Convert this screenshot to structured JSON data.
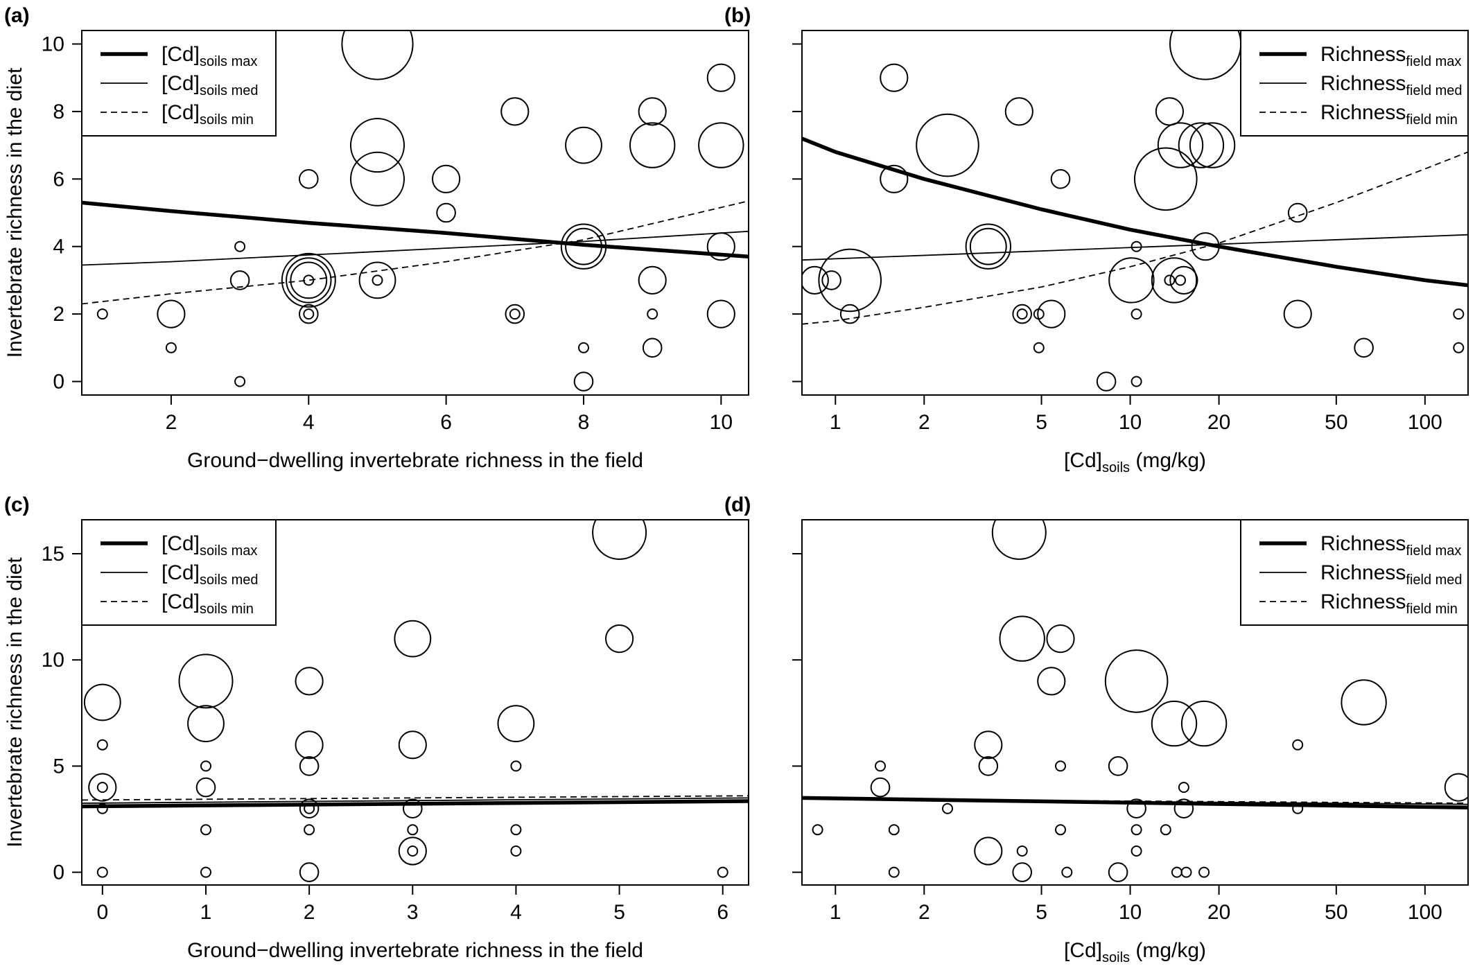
{
  "chart_data": [
    {
      "panel": "a",
      "type": "scatter",
      "panel_label": "(a)",
      "xlabel": "Ground−dwelling invertebrate richness in the field",
      "ylabel": "Invertebrate richness in the diet",
      "xscale": "linear",
      "xlim": [
        0.7,
        10.4
      ],
      "ylim": [
        -0.4,
        10.4
      ],
      "xticks": [
        2,
        4,
        6,
        8,
        10
      ],
      "yticks": [
        0,
        2,
        4,
        6,
        8,
        10
      ],
      "legend_position": "top-left",
      "legend": [
        {
          "base": "[Cd]",
          "sub": "soils max",
          "style": "thick"
        },
        {
          "base": "[Cd]",
          "sub": "soils med",
          "style": "thin"
        },
        {
          "base": "[Cd]",
          "sub": "soils min",
          "style": "dashed"
        }
      ],
      "points": [
        {
          "x": 1,
          "y": 2,
          "size": 1
        },
        {
          "x": 2,
          "y": 1,
          "size": 1
        },
        {
          "x": 2,
          "y": 2,
          "size": 3
        },
        {
          "x": 3,
          "y": 4,
          "size": 1
        },
        {
          "x": 3,
          "y": 3,
          "size": 2
        },
        {
          "x": 3,
          "y": 0,
          "size": 1
        },
        {
          "x": 4,
          "y": 6,
          "size": 2
        },
        {
          "x": 4,
          "y": 3,
          "size": 1
        },
        {
          "x": 4,
          "y": 3,
          "size": 4
        },
        {
          "x": 4,
          "y": 3,
          "size": 5
        },
        {
          "x": 4,
          "y": 3,
          "size": 6
        },
        {
          "x": 4,
          "y": 2,
          "size": 1
        },
        {
          "x": 4,
          "y": 2,
          "size": 2
        },
        {
          "x": 5,
          "y": 10,
          "size": 8
        },
        {
          "x": 5,
          "y": 7,
          "size": 6
        },
        {
          "x": 5,
          "y": 6,
          "size": 6
        },
        {
          "x": 5,
          "y": 3,
          "size": 1
        },
        {
          "x": 5,
          "y": 3,
          "size": 4
        },
        {
          "x": 6,
          "y": 6,
          "size": 3
        },
        {
          "x": 6,
          "y": 5,
          "size": 2
        },
        {
          "x": 7,
          "y": 8,
          "size": 3
        },
        {
          "x": 7,
          "y": 2,
          "size": 1
        },
        {
          "x": 7,
          "y": 2,
          "size": 2
        },
        {
          "x": 8,
          "y": 7,
          "size": 4
        },
        {
          "x": 8,
          "y": 4,
          "size": 4
        },
        {
          "x": 8,
          "y": 4,
          "size": 5
        },
        {
          "x": 8,
          "y": 1,
          "size": 1
        },
        {
          "x": 8,
          "y": 0,
          "size": 2
        },
        {
          "x": 9,
          "y": 8,
          "size": 3
        },
        {
          "x": 9,
          "y": 7,
          "size": 5
        },
        {
          "x": 9,
          "y": 3,
          "size": 3
        },
        {
          "x": 9,
          "y": 2,
          "size": 1
        },
        {
          "x": 9,
          "y": 1,
          "size": 2
        },
        {
          "x": 10,
          "y": 9,
          "size": 3
        },
        {
          "x": 10,
          "y": 7,
          "size": 5
        },
        {
          "x": 10,
          "y": 4,
          "size": 3
        },
        {
          "x": 10,
          "y": 2,
          "size": 3
        }
      ],
      "curves": [
        {
          "legend_index": 0,
          "style": "thick",
          "x": [
            0.7,
            2,
            4,
            6,
            8,
            10.4
          ],
          "y": [
            5.3,
            5.05,
            4.7,
            4.4,
            4.05,
            3.7
          ]
        },
        {
          "legend_index": 1,
          "style": "thin",
          "x": [
            0.7,
            2,
            4,
            6,
            8,
            10.4
          ],
          "y": [
            3.45,
            3.55,
            3.75,
            3.95,
            4.15,
            4.45
          ]
        },
        {
          "legend_index": 2,
          "style": "dashed",
          "x": [
            0.7,
            2,
            4,
            6,
            8,
            10.4
          ],
          "y": [
            2.3,
            2.6,
            3.0,
            3.55,
            4.2,
            5.35
          ]
        }
      ]
    },
    {
      "panel": "b",
      "type": "scatter",
      "panel_label": "(b)",
      "xlabel_base": "[Cd]",
      "xlabel_sub": "soils",
      "xlabel_unit": " (mg/kg)",
      "ylabel": "",
      "xscale": "log",
      "xlim": [
        0.77,
        140
      ],
      "ylim": [
        -0.4,
        10.4
      ],
      "xticks": [
        1,
        2,
        5,
        10,
        20,
        50,
        100
      ],
      "yticks": [
        0,
        2,
        4,
        6,
        8,
        10
      ],
      "legend_position": "top-right",
      "legend": [
        {
          "base": "Richness",
          "sub": "field max",
          "style": "thick"
        },
        {
          "base": "Richness",
          "sub": "field med",
          "style": "thin"
        },
        {
          "base": "Richness",
          "sub": "field min",
          "style": "dashed"
        }
      ],
      "points": [
        {
          "x": 0.85,
          "y": 3,
          "size": 3
        },
        {
          "x": 0.97,
          "y": 3,
          "size": 2
        },
        {
          "x": 1.12,
          "y": 3,
          "size": 7
        },
        {
          "x": 1.12,
          "y": 2,
          "size": 2
        },
        {
          "x": 1.58,
          "y": 9,
          "size": 3
        },
        {
          "x": 1.58,
          "y": 6,
          "size": 3
        },
        {
          "x": 2.4,
          "y": 7,
          "size": 7
        },
        {
          "x": 3.3,
          "y": 4,
          "size": 4
        },
        {
          "x": 3.3,
          "y": 4,
          "size": 5
        },
        {
          "x": 4.2,
          "y": 8,
          "size": 3
        },
        {
          "x": 4.3,
          "y": 2,
          "size": 1
        },
        {
          "x": 4.3,
          "y": 2,
          "size": 2
        },
        {
          "x": 4.9,
          "y": 2,
          "size": 1
        },
        {
          "x": 4.9,
          "y": 1,
          "size": 1
        },
        {
          "x": 5.4,
          "y": 2,
          "size": 3
        },
        {
          "x": 5.8,
          "y": 6,
          "size": 2
        },
        {
          "x": 8.3,
          "y": 0,
          "size": 2
        },
        {
          "x": 10.1,
          "y": 3,
          "size": 5
        },
        {
          "x": 10.5,
          "y": 4,
          "size": 1
        },
        {
          "x": 10.5,
          "y": 2,
          "size": 1
        },
        {
          "x": 10.5,
          "y": 0,
          "size": 1
        },
        {
          "x": 13.2,
          "y": 6,
          "size": 7
        },
        {
          "x": 13.6,
          "y": 8,
          "size": 3
        },
        {
          "x": 13.6,
          "y": 3,
          "size": 1
        },
        {
          "x": 14.1,
          "y": 3,
          "size": 5
        },
        {
          "x": 14.8,
          "y": 7,
          "size": 5
        },
        {
          "x": 14.8,
          "y": 3,
          "size": 1
        },
        {
          "x": 15.2,
          "y": 3,
          "size": 3
        },
        {
          "x": 17.4,
          "y": 7,
          "size": 5
        },
        {
          "x": 18,
          "y": 4,
          "size": 3
        },
        {
          "x": 18,
          "y": 10,
          "size": 8
        },
        {
          "x": 19,
          "y": 7,
          "size": 5
        },
        {
          "x": 37,
          "y": 5,
          "size": 2
        },
        {
          "x": 37,
          "y": 2,
          "size": 3
        },
        {
          "x": 62,
          "y": 1,
          "size": 2
        },
        {
          "x": 130,
          "y": 2,
          "size": 1
        },
        {
          "x": 130,
          "y": 1,
          "size": 1
        }
      ],
      "curves": [
        {
          "legend_index": 0,
          "style": "thick",
          "x": [
            0.77,
            1,
            2,
            5,
            10,
            20,
            50,
            100,
            140
          ],
          "y": [
            7.2,
            6.8,
            6.0,
            5.1,
            4.5,
            4.0,
            3.4,
            3.0,
            2.85
          ]
        },
        {
          "legend_index": 1,
          "style": "thin",
          "x": [
            0.77,
            140
          ],
          "y": [
            3.6,
            4.35
          ]
        },
        {
          "legend_index": 2,
          "style": "dashed",
          "x": [
            0.77,
            1,
            2,
            5,
            10,
            20,
            50,
            100,
            140
          ],
          "y": [
            1.7,
            1.8,
            2.2,
            2.8,
            3.4,
            4.1,
            5.3,
            6.3,
            6.8
          ]
        }
      ]
    },
    {
      "panel": "c",
      "type": "scatter",
      "panel_label": "(c)",
      "xlabel": "Ground−dwelling invertebrate richness in the field",
      "ylabel": "Invertebrate richness in the diet",
      "xscale": "linear",
      "xlim": [
        -0.2,
        6.25
      ],
      "ylim": [
        -0.6,
        16.6
      ],
      "xticks": [
        0,
        1,
        2,
        3,
        4,
        5,
        6
      ],
      "yticks": [
        0,
        5,
        10,
        15
      ],
      "legend_position": "top-left",
      "legend": [
        {
          "base": "[Cd]",
          "sub": "soils max",
          "style": "thick"
        },
        {
          "base": "[Cd]",
          "sub": "soils med",
          "style": "thin"
        },
        {
          "base": "[Cd]",
          "sub": "soils min",
          "style": "dashed"
        }
      ],
      "points": [
        {
          "x": 0,
          "y": 8,
          "size": 4
        },
        {
          "x": 0,
          "y": 6,
          "size": 1
        },
        {
          "x": 0,
          "y": 4,
          "size": 1
        },
        {
          "x": 0,
          "y": 4,
          "size": 3
        },
        {
          "x": 0,
          "y": 3,
          "size": 1
        },
        {
          "x": 0,
          "y": 0,
          "size": 1
        },
        {
          "x": 1,
          "y": 9,
          "size": 6
        },
        {
          "x": 1,
          "y": 7,
          "size": 4
        },
        {
          "x": 1,
          "y": 5,
          "size": 1
        },
        {
          "x": 1,
          "y": 4,
          "size": 2
        },
        {
          "x": 1,
          "y": 2,
          "size": 1
        },
        {
          "x": 1,
          "y": 0,
          "size": 1
        },
        {
          "x": 2,
          "y": 9,
          "size": 3
        },
        {
          "x": 2,
          "y": 6,
          "size": 3
        },
        {
          "x": 2,
          "y": 5,
          "size": 2
        },
        {
          "x": 2,
          "y": 3,
          "size": 1
        },
        {
          "x": 2,
          "y": 3,
          "size": 2
        },
        {
          "x": 2,
          "y": 2,
          "size": 1
        },
        {
          "x": 2,
          "y": 0,
          "size": 2
        },
        {
          "x": 3,
          "y": 11,
          "size": 4
        },
        {
          "x": 3,
          "y": 6,
          "size": 3
        },
        {
          "x": 3,
          "y": 3,
          "size": 2
        },
        {
          "x": 3,
          "y": 2,
          "size": 1
        },
        {
          "x": 3,
          "y": 1,
          "size": 1
        },
        {
          "x": 3,
          "y": 1,
          "size": 3
        },
        {
          "x": 4,
          "y": 7,
          "size": 4
        },
        {
          "x": 4,
          "y": 5,
          "size": 1
        },
        {
          "x": 4,
          "y": 2,
          "size": 1
        },
        {
          "x": 4,
          "y": 1,
          "size": 1
        },
        {
          "x": 5,
          "y": 16,
          "size": 6
        },
        {
          "x": 5,
          "y": 11,
          "size": 3
        },
        {
          "x": 6,
          "y": 0,
          "size": 1
        }
      ],
      "curves": [
        {
          "legend_index": 0,
          "style": "thick",
          "x": [
            -0.2,
            6.25
          ],
          "y": [
            3.1,
            3.35
          ]
        },
        {
          "legend_index": 1,
          "style": "thin",
          "x": [
            -0.2,
            6.25
          ],
          "y": [
            3.25,
            3.5
          ]
        },
        {
          "legend_index": 2,
          "style": "dashed",
          "x": [
            -0.2,
            6.25
          ],
          "y": [
            3.4,
            3.6
          ]
        }
      ]
    },
    {
      "panel": "d",
      "type": "scatter",
      "panel_label": "(d)",
      "xlabel_base": "[Cd]",
      "xlabel_sub": "soils",
      "xlabel_unit": " (mg/kg)",
      "ylabel": "",
      "xscale": "log",
      "xlim": [
        0.77,
        140
      ],
      "ylim": [
        -0.6,
        16.6
      ],
      "xticks": [
        1,
        2,
        5,
        10,
        20,
        50,
        100
      ],
      "yticks": [
        0,
        5,
        10,
        15
      ],
      "legend_position": "top-right",
      "legend": [
        {
          "base": "Richness",
          "sub": "field max",
          "style": "thick"
        },
        {
          "base": "Richness",
          "sub": "field med",
          "style": "thin"
        },
        {
          "base": "Richness",
          "sub": "field min",
          "style": "dashed"
        }
      ],
      "points": [
        {
          "x": 0.87,
          "y": 2,
          "size": 1
        },
        {
          "x": 1.42,
          "y": 5,
          "size": 1
        },
        {
          "x": 1.42,
          "y": 4,
          "size": 2
        },
        {
          "x": 1.58,
          "y": 2,
          "size": 1
        },
        {
          "x": 1.58,
          "y": 0,
          "size": 1
        },
        {
          "x": 2.4,
          "y": 3,
          "size": 1
        },
        {
          "x": 3.3,
          "y": 6,
          "size": 3
        },
        {
          "x": 3.3,
          "y": 5,
          "size": 2
        },
        {
          "x": 3.3,
          "y": 1,
          "size": 3
        },
        {
          "x": 4.2,
          "y": 16,
          "size": 6
        },
        {
          "x": 4.3,
          "y": 11,
          "size": 5
        },
        {
          "x": 4.3,
          "y": 1,
          "size": 1
        },
        {
          "x": 4.3,
          "y": 0,
          "size": 2
        },
        {
          "x": 5.4,
          "y": 9,
          "size": 3
        },
        {
          "x": 5.8,
          "y": 11,
          "size": 3
        },
        {
          "x": 5.8,
          "y": 5,
          "size": 1
        },
        {
          "x": 5.8,
          "y": 2,
          "size": 1
        },
        {
          "x": 6.1,
          "y": 0,
          "size": 1
        },
        {
          "x": 9.1,
          "y": 5,
          "size": 2
        },
        {
          "x": 9.1,
          "y": 0,
          "size": 2
        },
        {
          "x": 10.5,
          "y": 9,
          "size": 7
        },
        {
          "x": 10.5,
          "y": 3,
          "size": 2
        },
        {
          "x": 10.5,
          "y": 2,
          "size": 1
        },
        {
          "x": 10.5,
          "y": 1,
          "size": 1
        },
        {
          "x": 13.2,
          "y": 2,
          "size": 1
        },
        {
          "x": 14.1,
          "y": 7,
          "size": 5
        },
        {
          "x": 14.4,
          "y": 0,
          "size": 1
        },
        {
          "x": 15.2,
          "y": 4,
          "size": 1
        },
        {
          "x": 15.2,
          "y": 3,
          "size": 2
        },
        {
          "x": 15.5,
          "y": 0,
          "size": 1
        },
        {
          "x": 17.8,
          "y": 7,
          "size": 5
        },
        {
          "x": 17.8,
          "y": 0,
          "size": 1
        },
        {
          "x": 37,
          "y": 6,
          "size": 1
        },
        {
          "x": 37,
          "y": 3,
          "size": 1
        },
        {
          "x": 62,
          "y": 8,
          "size": 5
        },
        {
          "x": 130,
          "y": 4,
          "size": 3
        }
      ],
      "curves": [
        {
          "legend_index": 1,
          "style": "thin",
          "x": [
            0.77,
            140
          ],
          "y": [
            3.45,
            3.2
          ]
        },
        {
          "legend_index": 2,
          "style": "dashed",
          "x": [
            0.77,
            140
          ],
          "y": [
            3.45,
            3.25
          ]
        },
        {
          "legend_index": 0,
          "style": "thick",
          "x": [
            0.77,
            140
          ],
          "y": [
            3.5,
            3.05
          ]
        }
      ]
    }
  ]
}
